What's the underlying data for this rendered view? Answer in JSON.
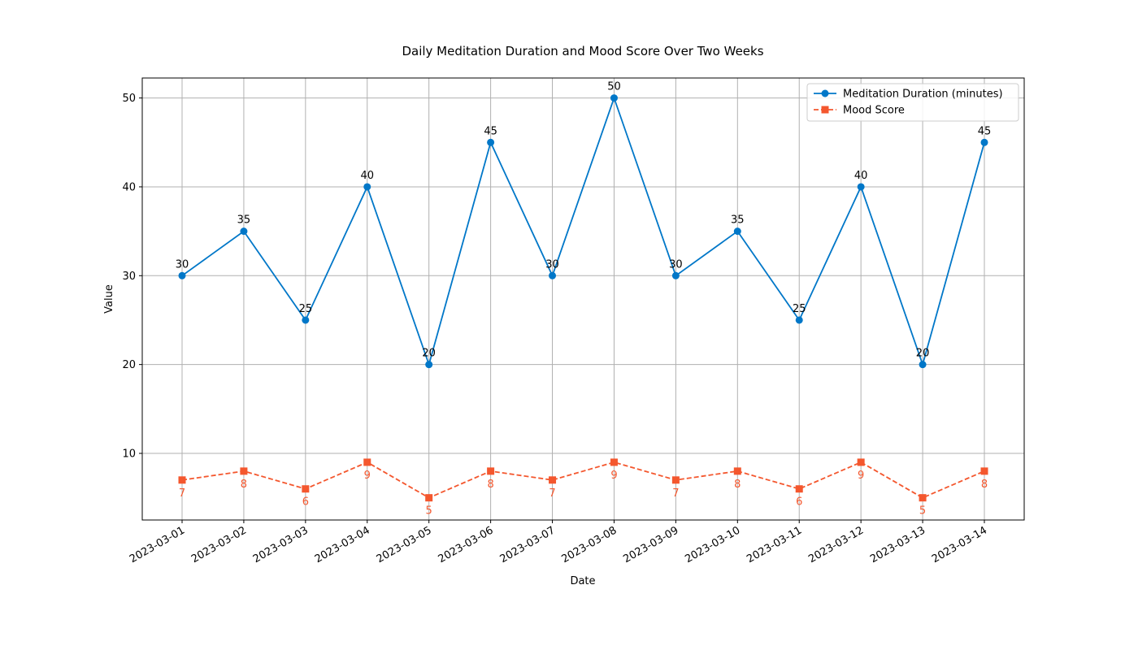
{
  "chart_data": {
    "type": "line",
    "title": "Daily Meditation Duration and Mood Score Over Two Weeks",
    "xlabel": "Date",
    "ylabel": "Value",
    "ylim": [
      2.5,
      52.25
    ],
    "yticks": [
      10,
      20,
      30,
      40,
      50
    ],
    "grid": true,
    "legend_position": "top-right",
    "categories": [
      "2023-03-01",
      "2023-03-02",
      "2023-03-03",
      "2023-03-04",
      "2023-03-05",
      "2023-03-06",
      "2023-03-07",
      "2023-03-08",
      "2023-03-09",
      "2023-03-10",
      "2023-03-11",
      "2023-03-12",
      "2023-03-13",
      "2023-03-14"
    ],
    "series": [
      {
        "name": "Meditation Duration (minutes)",
        "values": [
          30,
          35,
          25,
          40,
          20,
          45,
          30,
          50,
          30,
          35,
          25,
          40,
          20,
          45
        ],
        "color": "#0077c8",
        "marker": "circle",
        "line_style": "solid",
        "label_position": "above"
      },
      {
        "name": "Mood Score",
        "values": [
          7,
          8,
          6,
          9,
          5,
          8,
          7,
          9,
          7,
          8,
          6,
          9,
          5,
          8
        ],
        "color": "#f4572e",
        "marker": "square",
        "line_style": "dashed",
        "label_position": "below"
      }
    ]
  }
}
